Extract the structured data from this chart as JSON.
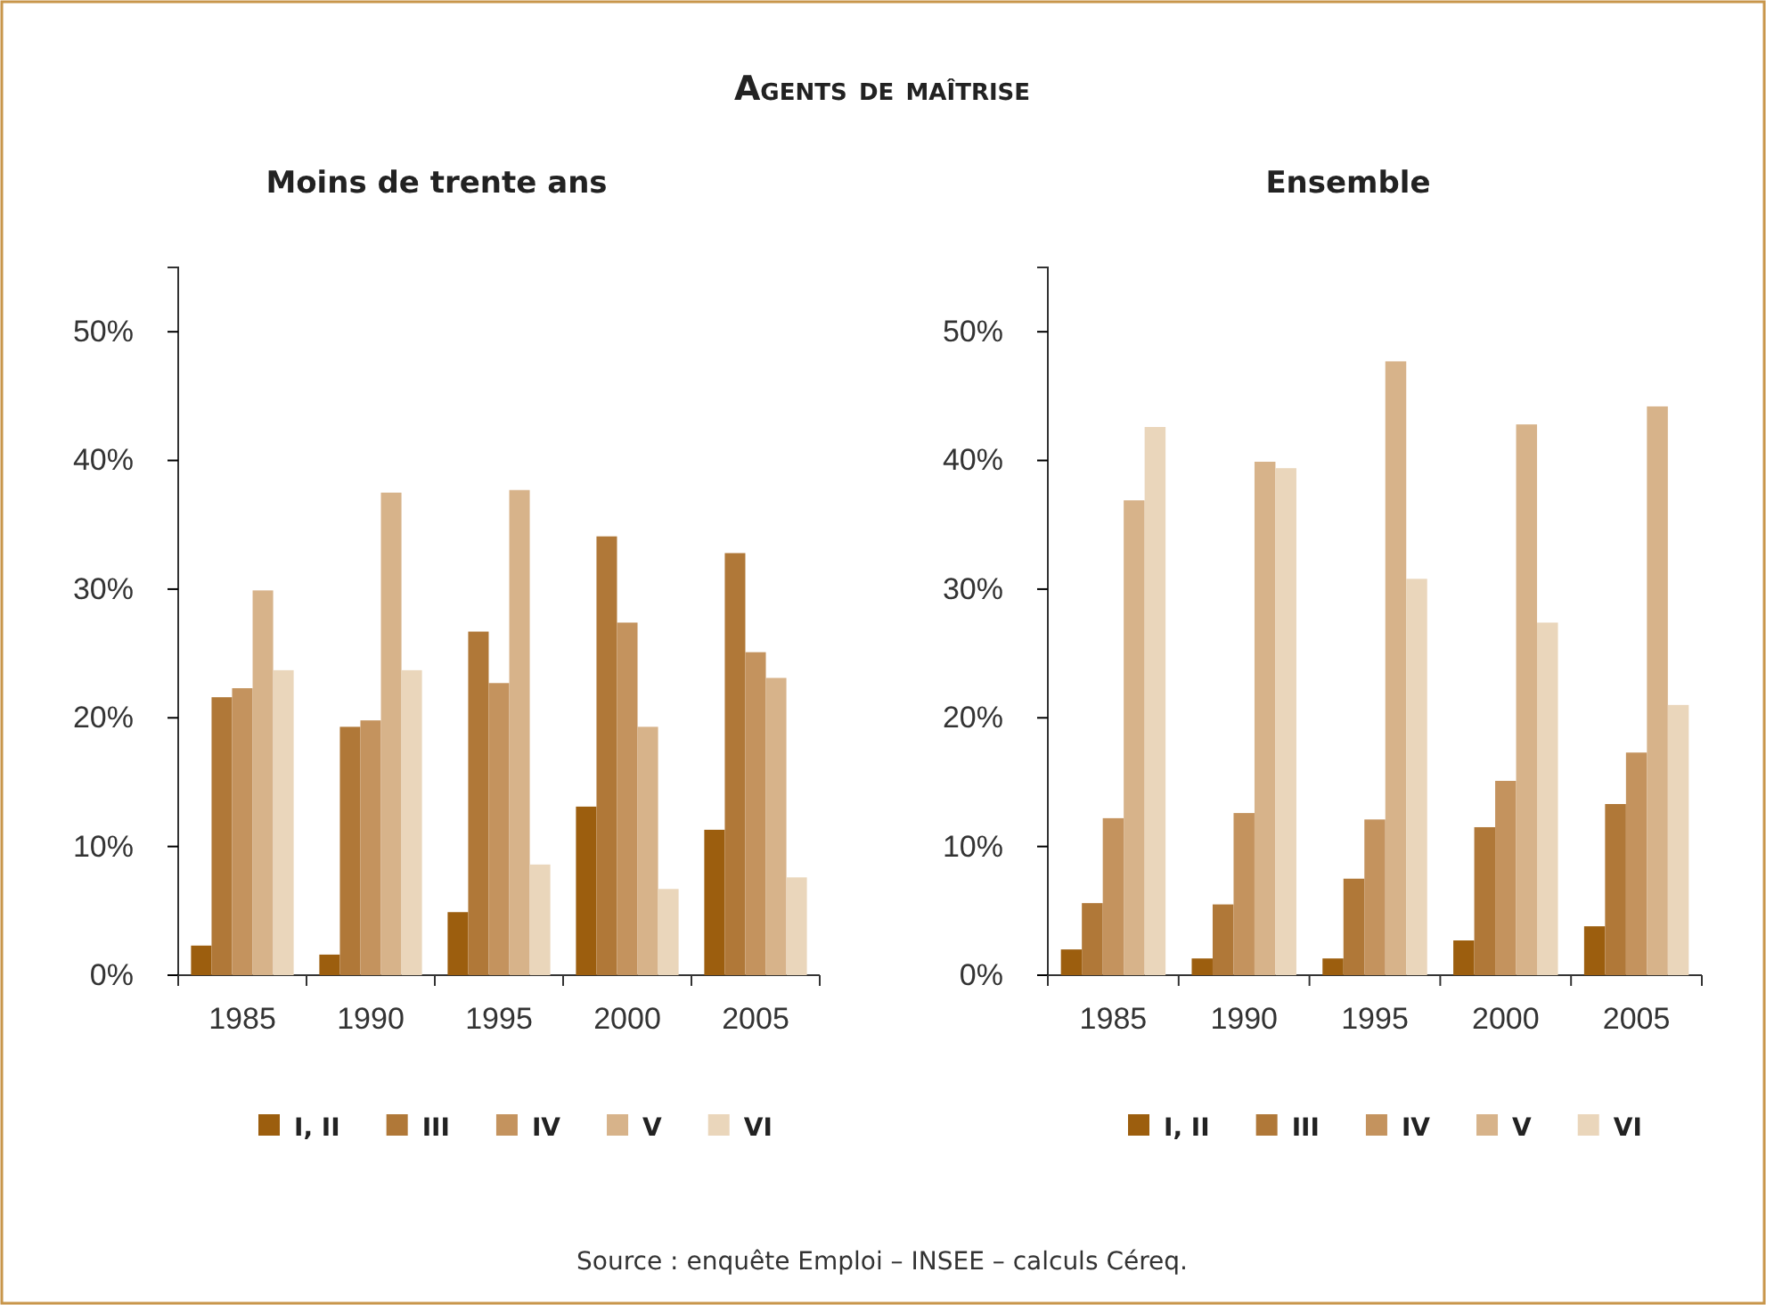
{
  "chart_data": [
    {
      "type": "bar",
      "title": "Agents de maîtrise",
      "subtitle": "Moins de trente ans",
      "categories": [
        "1985",
        "1990",
        "1995",
        "2000",
        "2005"
      ],
      "series": [
        {
          "name": "I, II",
          "color": "#9c5e0e",
          "values": [
            2.3,
            1.6,
            4.9,
            13.1,
            11.3
          ]
        },
        {
          "name": "III",
          "color": "#b07838",
          "values": [
            21.6,
            19.3,
            26.7,
            34.1,
            32.8
          ]
        },
        {
          "name": "IV",
          "color": "#c4935e",
          "values": [
            22.3,
            19.8,
            22.7,
            27.4,
            25.1
          ]
        },
        {
          "name": "V",
          "color": "#d7b38a",
          "values": [
            29.9,
            37.5,
            37.7,
            19.3,
            23.1
          ]
        },
        {
          "name": "VI",
          "color": "#ead6bb",
          "values": [
            23.7,
            23.7,
            8.6,
            6.7,
            7.6
          ]
        }
      ],
      "ylim": [
        0,
        55
      ],
      "yticks": [
        {
          "value": 0,
          "label": "0%"
        },
        {
          "value": 10,
          "label": "10%"
        },
        {
          "value": 20,
          "label": "20%"
        },
        {
          "value": 30,
          "label": "30%"
        },
        {
          "value": 40,
          "label": "40%"
        },
        {
          "value": 50,
          "label": "50%"
        }
      ],
      "grid": false,
      "legend": "bottom"
    },
    {
      "type": "bar",
      "title": "Ensemble",
      "categories": [
        "1985",
        "1990",
        "1995",
        "2000",
        "2005"
      ],
      "series": [
        {
          "name": "I, II",
          "color": "#9c5e0e",
          "values": [
            2.0,
            1.3,
            1.3,
            2.7,
            3.8
          ]
        },
        {
          "name": "III",
          "color": "#b07838",
          "values": [
            5.6,
            5.5,
            7.5,
            11.5,
            13.3
          ]
        },
        {
          "name": "IV",
          "color": "#c4935e",
          "values": [
            12.2,
            12.6,
            12.1,
            15.1,
            17.3
          ]
        },
        {
          "name": "V",
          "color": "#d7b38a",
          "values": [
            36.9,
            39.9,
            47.7,
            42.8,
            44.2
          ]
        },
        {
          "name": "VI",
          "color": "#ead6bb",
          "values": [
            42.6,
            39.4,
            30.8,
            27.4,
            21.0
          ]
        }
      ],
      "ylim": [
        0,
        55
      ],
      "yticks": [
        {
          "value": 0,
          "label": "0%"
        },
        {
          "value": 10,
          "label": "10%"
        },
        {
          "value": 20,
          "label": "20%"
        },
        {
          "value": 30,
          "label": "30%"
        },
        {
          "value": 40,
          "label": "40%"
        },
        {
          "value": 50,
          "label": "50%"
        }
      ],
      "grid": false,
      "legend": "bottom",
      "annotations": [
        "Source : enquête Emploi – INSEE – calculs Céreq."
      ]
    }
  ]
}
